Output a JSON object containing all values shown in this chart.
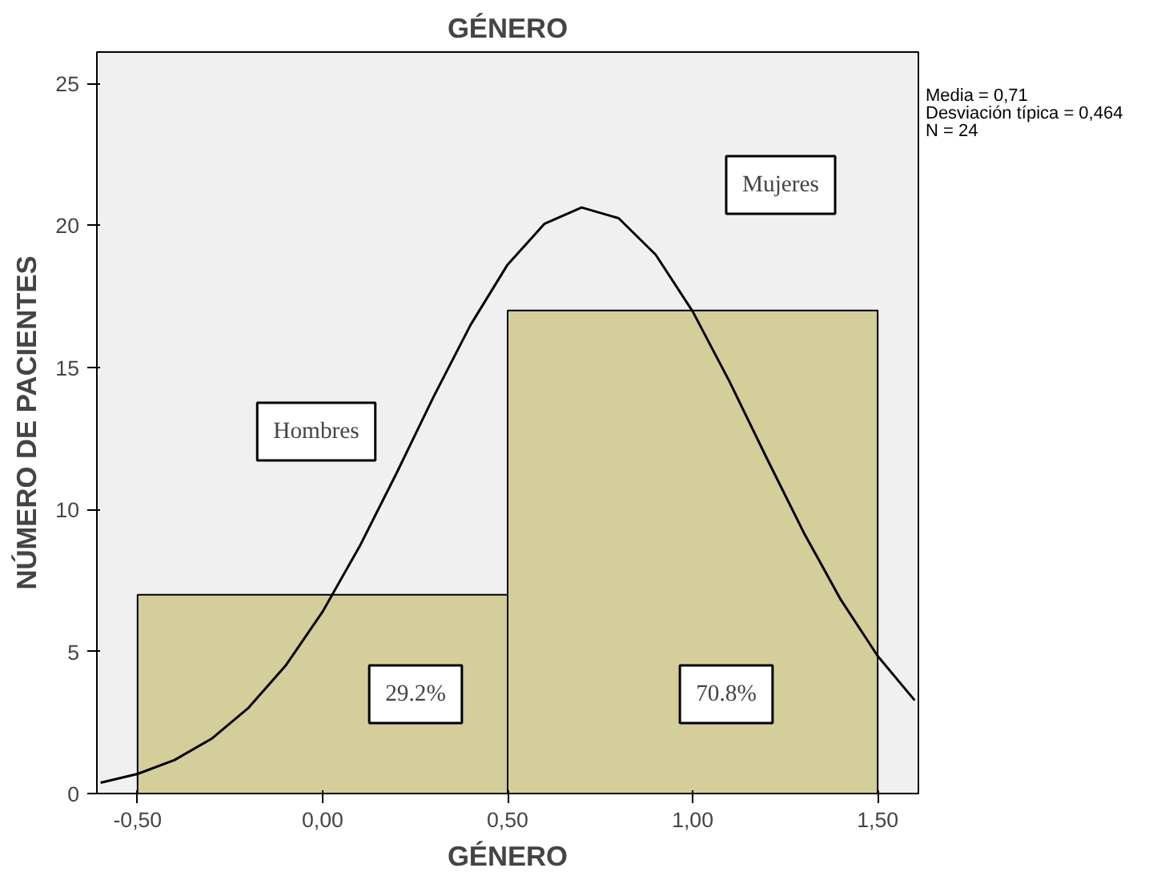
{
  "chart_data": {
    "type": "histogram",
    "title": "GÉNERO",
    "xlabel": "GÉNERO",
    "ylabel": "NÚMERO DE PACIENTES",
    "bins": [
      -0.5,
      0.5,
      1.5
    ],
    "series": [
      {
        "color": "#d3ce9a",
        "values": [
          7,
          17
        ]
      },
      {
        "type": "line",
        "color": "#000000",
        "x": [
          -0.6,
          -0.5,
          -0.4,
          -0.3,
          -0.2,
          -0.1,
          0.0,
          0.1,
          0.2,
          0.3,
          0.4,
          0.5,
          0.6,
          0.7,
          0.8,
          0.9,
          1.0,
          1.1,
          1.2,
          1.3,
          1.4,
          1.5,
          1.6
        ],
        "values": [
          0.38,
          0.69,
          1.18,
          1.93,
          3.02,
          4.5,
          6.4,
          8.7,
          11.28,
          13.97,
          16.5,
          18.62,
          20.06,
          20.63,
          20.25,
          18.97,
          16.97,
          14.49,
          11.81,
          9.19,
          6.83,
          4.84,
          3.28
        ]
      }
    ],
    "xlim": [
      -0.61,
      1.61
    ],
    "ylim": [
      0,
      26.1
    ],
    "xticks": [
      {
        "value": -0.5,
        "label": "-0,50"
      },
      {
        "value": 0.0,
        "label": "0,00"
      },
      {
        "value": 0.5,
        "label": "0,50"
      },
      {
        "value": 1.0,
        "label": "1,00"
      },
      {
        "value": 1.5,
        "label": "1,50"
      }
    ],
    "yticks": [
      0,
      5,
      10,
      15,
      20,
      25
    ],
    "grid": false,
    "legend": false,
    "annotations": [
      "Hombres",
      "Mujeres",
      "29.2%",
      "70.8%",
      "Media = 0,71",
      "Desviación típica = 0,464",
      "N = 24"
    ]
  }
}
